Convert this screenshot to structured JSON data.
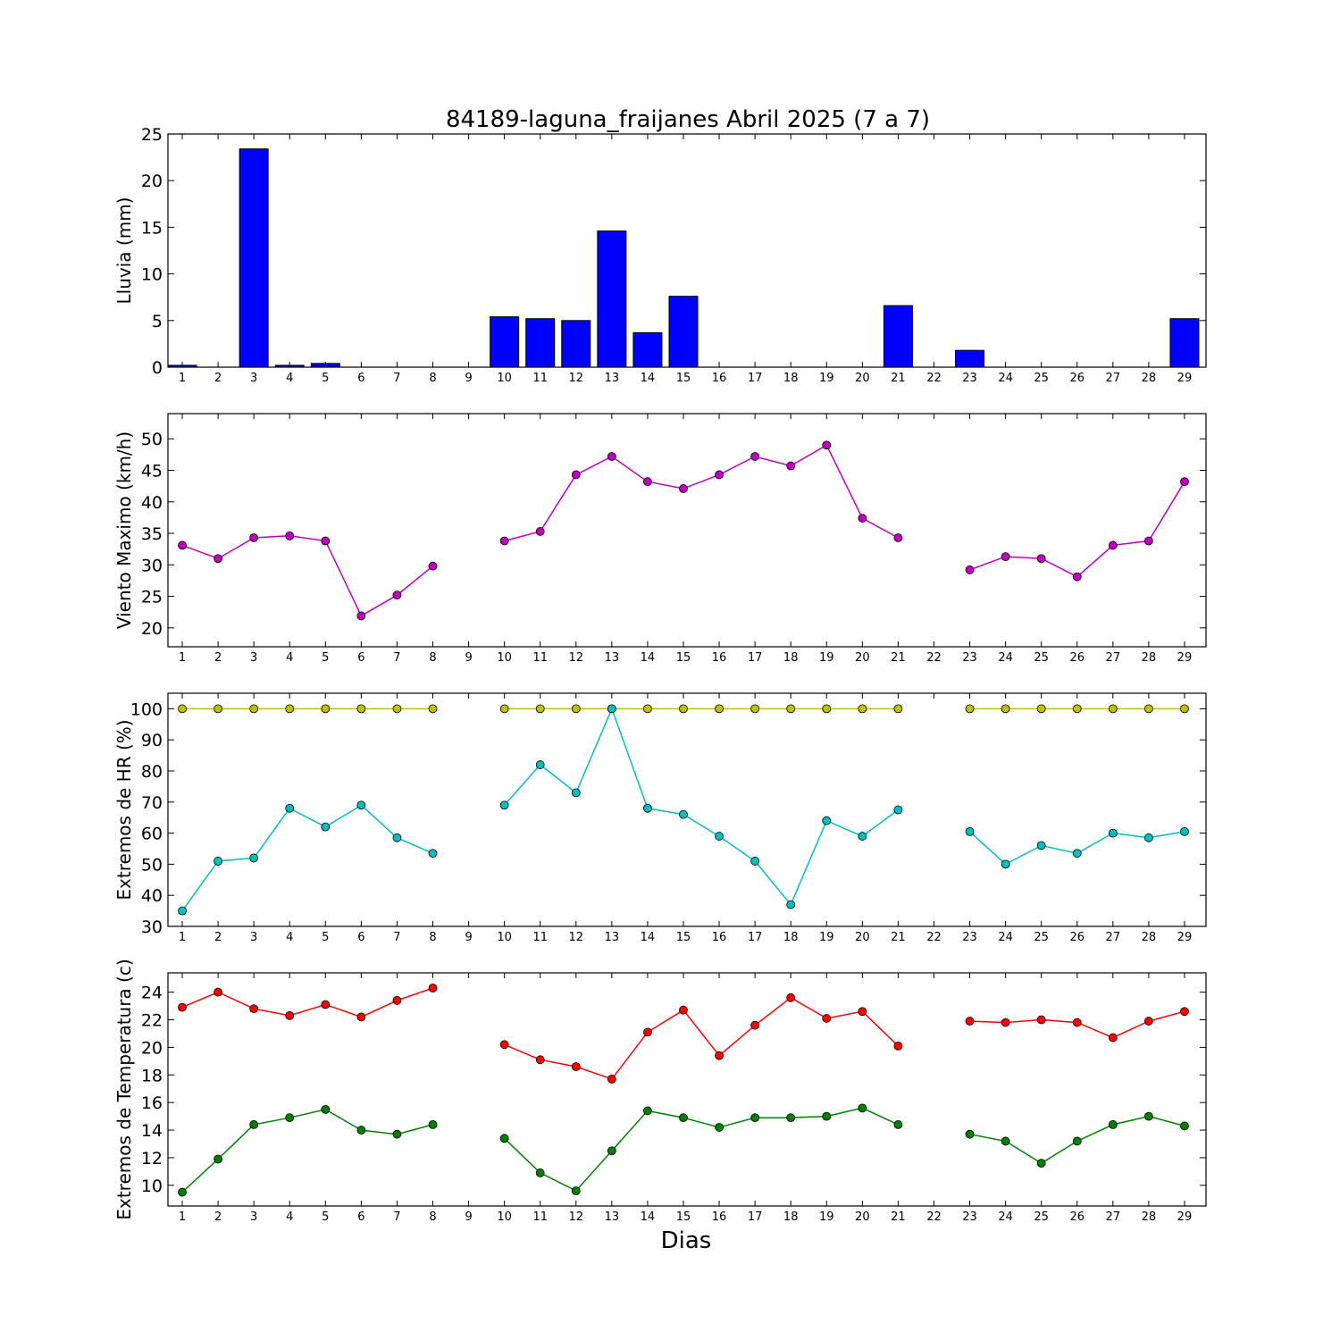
{
  "chart_data": {
    "type": "multi-panel",
    "title": "84189-laguna_fraijanes Abril 2025  (7 a 7)",
    "xlabel": "Dias",
    "days": [
      1,
      2,
      3,
      4,
      5,
      6,
      7,
      8,
      9,
      10,
      11,
      12,
      13,
      14,
      15,
      16,
      17,
      18,
      19,
      20,
      21,
      22,
      23,
      24,
      25,
      26,
      27,
      28,
      29
    ],
    "panels": [
      {
        "type": "bar",
        "ylabel": "Lluvia (mm)",
        "ylim": [
          0,
          25
        ],
        "yticks": [
          0,
          5,
          10,
          15,
          20,
          25
        ],
        "series": [
          {
            "color": "#0000ff",
            "values": [
              0.2,
              0.0,
              23.4,
              0.2,
              0.4,
              0.0,
              0.0,
              0.0,
              0.0,
              5.4,
              5.2,
              5.0,
              14.6,
              3.7,
              7.6,
              0.0,
              0.0,
              0.0,
              0.0,
              0.0,
              6.6,
              0.0,
              1.8,
              0.0,
              0.0,
              0.0,
              0.0,
              0.0,
              5.2
            ]
          }
        ]
      },
      {
        "type": "line",
        "ylabel": "Viento Maximo (km/h)",
        "ylim": [
          17,
          54
        ],
        "yticks": [
          20,
          25,
          30,
          35,
          40,
          45,
          50
        ],
        "series": [
          {
            "color": "#bf00bf",
            "values": [
              33.1,
              31.0,
              34.3,
              34.6,
              33.8,
              21.9,
              25.2,
              29.8,
              null,
              33.8,
              35.3,
              44.3,
              47.2,
              43.2,
              42.1,
              44.3,
              47.2,
              45.7,
              49.0,
              37.4,
              34.3,
              null,
              29.2,
              31.3,
              31.0,
              28.1,
              33.1,
              33.8,
              43.2
            ]
          }
        ]
      },
      {
        "type": "line",
        "ylabel": "Extremos de HR (%)",
        "ylim": [
          30,
          105
        ],
        "yticks": [
          30,
          40,
          50,
          60,
          70,
          80,
          90,
          100
        ],
        "series": [
          {
            "color": "#bfbf00",
            "values": [
              100,
              100,
              100,
              100,
              100,
              100,
              100,
              100,
              null,
              100,
              100,
              100,
              100,
              100,
              100,
              100,
              100,
              100,
              100,
              100,
              100,
              null,
              100,
              100,
              100,
              100,
              100,
              100,
              100
            ]
          },
          {
            "color": "#00bfbf",
            "values": [
              35,
              51,
              52,
              68,
              62,
              69,
              58.5,
              53.5,
              null,
              69,
              82,
              73,
              100,
              68,
              66,
              59,
              51,
              37,
              64,
              59,
              67.5,
              null,
              60.5,
              50,
              56,
              53.5,
              60,
              58.5,
              60.5
            ]
          }
        ]
      },
      {
        "type": "line",
        "ylabel": "Extremos de Temperatura (c)",
        "ylim": [
          8.5,
          25.4
        ],
        "yticks": [
          10,
          12,
          14,
          16,
          18,
          20,
          22,
          24
        ],
        "series": [
          {
            "color": "#ff0000",
            "values": [
              22.9,
              24.0,
              22.8,
              22.3,
              23.1,
              22.2,
              23.4,
              24.3,
              null,
              20.2,
              19.1,
              18.6,
              17.7,
              21.1,
              22.7,
              19.4,
              21.6,
              23.6,
              22.1,
              22.6,
              20.1,
              null,
              21.9,
              21.8,
              22.0,
              21.8,
              20.7,
              21.9,
              22.6
            ]
          },
          {
            "color": "#008000",
            "values": [
              9.5,
              11.9,
              14.4,
              14.9,
              15.5,
              14.0,
              13.7,
              14.4,
              null,
              13.4,
              10.9,
              9.6,
              12.5,
              15.4,
              14.9,
              14.2,
              14.9,
              14.9,
              15.0,
              15.6,
              14.4,
              null,
              13.7,
              13.2,
              11.6,
              13.2,
              14.4,
              15.0,
              14.3
            ]
          }
        ]
      }
    ]
  }
}
